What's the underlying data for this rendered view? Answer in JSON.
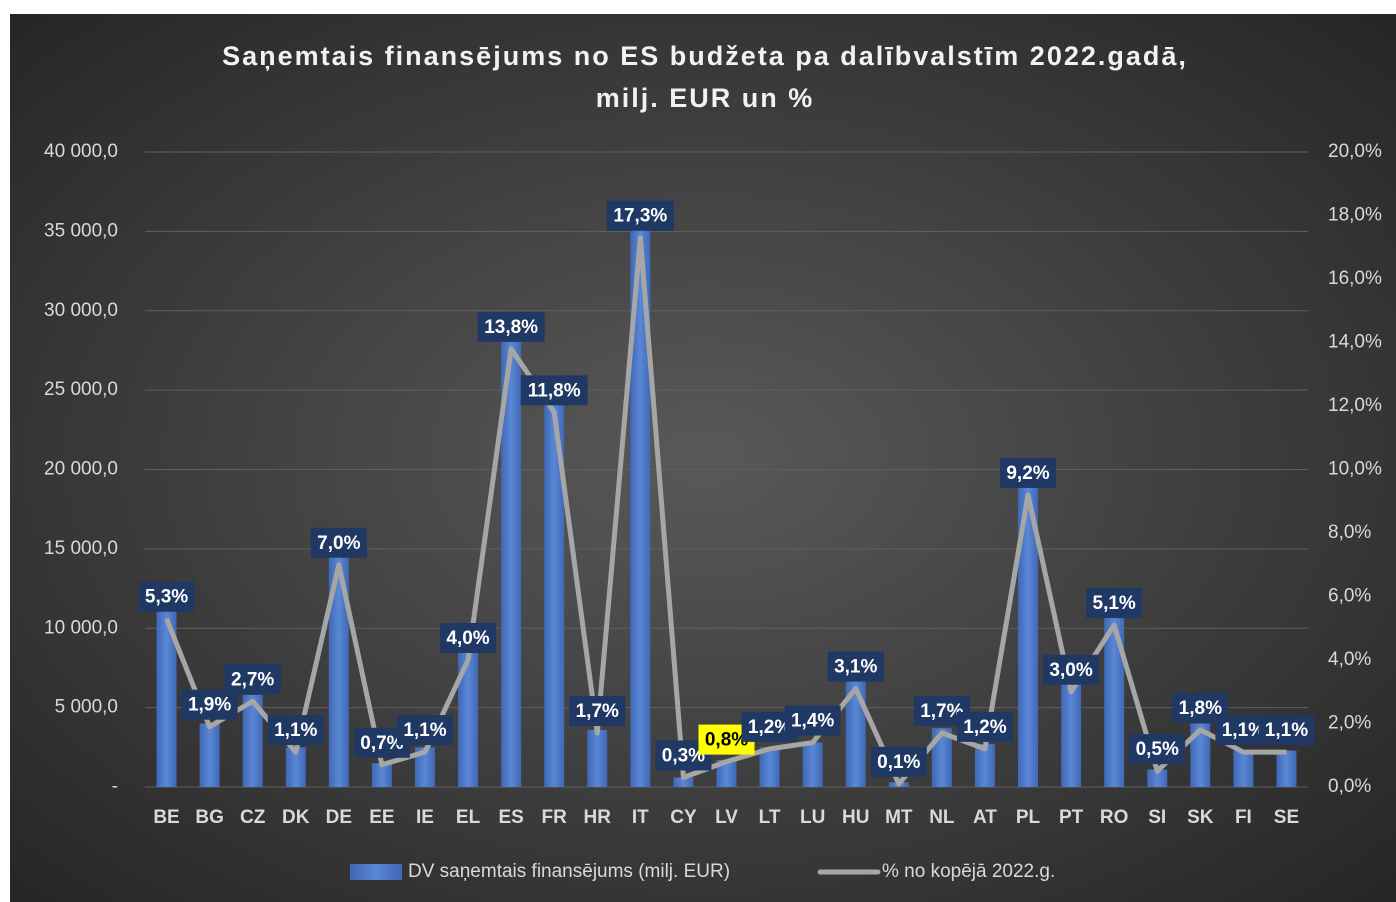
{
  "chart_data": {
    "type": "bar-line",
    "title": [
      "Saņemtais finansējums no ES budžeta pa dalībvalstīm 2022.gadā,",
      "milj. EUR un %"
    ],
    "categories": [
      "BE",
      "BG",
      "CZ",
      "DK",
      "DE",
      "EE",
      "IE",
      "EL",
      "ES",
      "FR",
      "HR",
      "IT",
      "CY",
      "LV",
      "LT",
      "LU",
      "HU",
      "MT",
      "NL",
      "AT",
      "PL",
      "PT",
      "RO",
      "SI",
      "SK",
      "FI",
      "SE"
    ],
    "series": [
      {
        "name": "DV saņemtais finansējums (milj. EUR)",
        "type": "bar",
        "color": "#4472c4",
        "values": [
          11500,
          4000,
          5800,
          2500,
          15000,
          1500,
          2500,
          8500,
          28800,
          24700,
          3600,
          35600,
          600,
          1700,
          2500,
          2800,
          6700,
          300,
          3700,
          2700,
          19500,
          6500,
          11000,
          1100,
          4000,
          2300,
          2300
        ]
      },
      {
        "name": "% no kopējā 2022.g.",
        "type": "line",
        "axis": "y2",
        "color": "#a6a6a6",
        "values": [
          5.3,
          1.9,
          2.7,
          1.1,
          7.0,
          0.7,
          1.1,
          4.0,
          13.8,
          11.8,
          1.7,
          17.3,
          0.3,
          0.8,
          1.2,
          1.4,
          3.1,
          0.1,
          1.7,
          1.2,
          9.2,
          3.0,
          5.1,
          0.5,
          1.8,
          1.1,
          1.1
        ],
        "value_labels": [
          "5,3%",
          "1,9%",
          "2,7%",
          "1,1%",
          "7,0%",
          "0,7%",
          "1,1%",
          "4,0%",
          "13,8%",
          "11,8%",
          "1,7%",
          "17,3%",
          "0,3%",
          "0,8%",
          "1,2%",
          "1,4%",
          "3,1%",
          "0,1%",
          "1,7%",
          "1,2%",
          "9,2%",
          "3,0%",
          "5,1%",
          "0,5%",
          "1,8%",
          "1,1%",
          "1,1%"
        ]
      }
    ],
    "highlight_category": "LV",
    "highlight_color": "#ffff00",
    "label_box_color": "#1f3864",
    "ylim": [
      0,
      40000
    ],
    "yticks": [
      {
        "value": 0,
        "label": "-"
      },
      {
        "value": 5000,
        "label": "5 000,0"
      },
      {
        "value": 10000,
        "label": "10 000,0"
      },
      {
        "value": 15000,
        "label": "15 000,0"
      },
      {
        "value": 20000,
        "label": "20 000,0"
      },
      {
        "value": 25000,
        "label": "25 000,0"
      },
      {
        "value": 30000,
        "label": "30 000,0"
      },
      {
        "value": 35000,
        "label": "35 000,0"
      },
      {
        "value": 40000,
        "label": "40 000,0"
      }
    ],
    "y2lim": [
      0,
      20
    ],
    "y2ticks": [
      {
        "value": 0,
        "label": "0,0%"
      },
      {
        "value": 2,
        "label": "2,0%"
      },
      {
        "value": 4,
        "label": "4,0%"
      },
      {
        "value": 6,
        "label": "6,0%"
      },
      {
        "value": 8,
        "label": "8,0%"
      },
      {
        "value": 10,
        "label": "10,0%"
      },
      {
        "value": 12,
        "label": "12,0%"
      },
      {
        "value": 14,
        "label": "14,0%"
      },
      {
        "value": 16,
        "label": "16,0%"
      },
      {
        "value": 18,
        "label": "18,0%"
      },
      {
        "value": 20,
        "label": "20,0%"
      }
    ],
    "grid": true,
    "legend": "bottom"
  }
}
